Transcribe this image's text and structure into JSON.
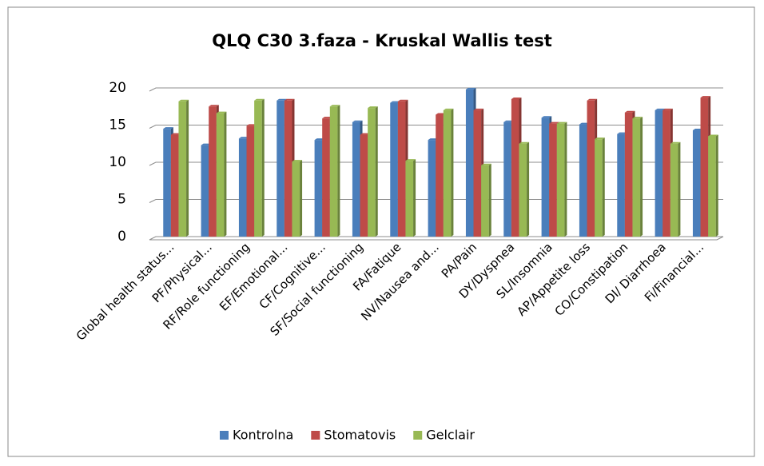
{
  "chart_data": {
    "type": "bar",
    "title": "QLQ C30 3.faza - Kruskal Wallis test",
    "categories": [
      "Global health status...",
      "PF/Physical...",
      "RF/Role functioning",
      "EF/Emotional...",
      "CF/Cognitive...",
      "SF/Social functioning",
      "FA/Fatique",
      "NV/Nausea and...",
      "PA/Pain",
      "DY/Dyspnea",
      "SL/Insomnia",
      "AP/Appetite loss",
      "CO/Constipation",
      "DI/ Diarrhoea",
      "Fi/Financial..."
    ],
    "series": [
      {
        "name": "Kontrolna",
        "color": "#4a7ebb",
        "values": [
          14.5,
          12.3,
          13.2,
          18.3,
          13.0,
          15.4,
          18.0,
          13.0,
          19.8,
          15.4,
          16.0,
          15.1,
          13.8,
          17.0,
          14.3
        ]
      },
      {
        "name": "Stomatovis",
        "color": "#be4b48",
        "values": [
          13.7,
          17.5,
          14.9,
          18.3,
          15.9,
          13.7,
          18.2,
          16.4,
          17.0,
          18.5,
          15.2,
          18.3,
          16.7,
          17.0,
          18.7
        ]
      },
      {
        "name": "Gelclair",
        "color": "#98b954",
        "values": [
          18.2,
          16.6,
          18.3,
          10.1,
          17.5,
          17.3,
          10.2,
          17.0,
          9.6,
          12.5,
          15.2,
          13.1,
          15.9,
          12.5,
          13.5
        ]
      }
    ],
    "ylim": [
      0,
      20
    ],
    "yticks": [
      0,
      5,
      10,
      15,
      20
    ],
    "grid": true,
    "legend": "bottom"
  }
}
